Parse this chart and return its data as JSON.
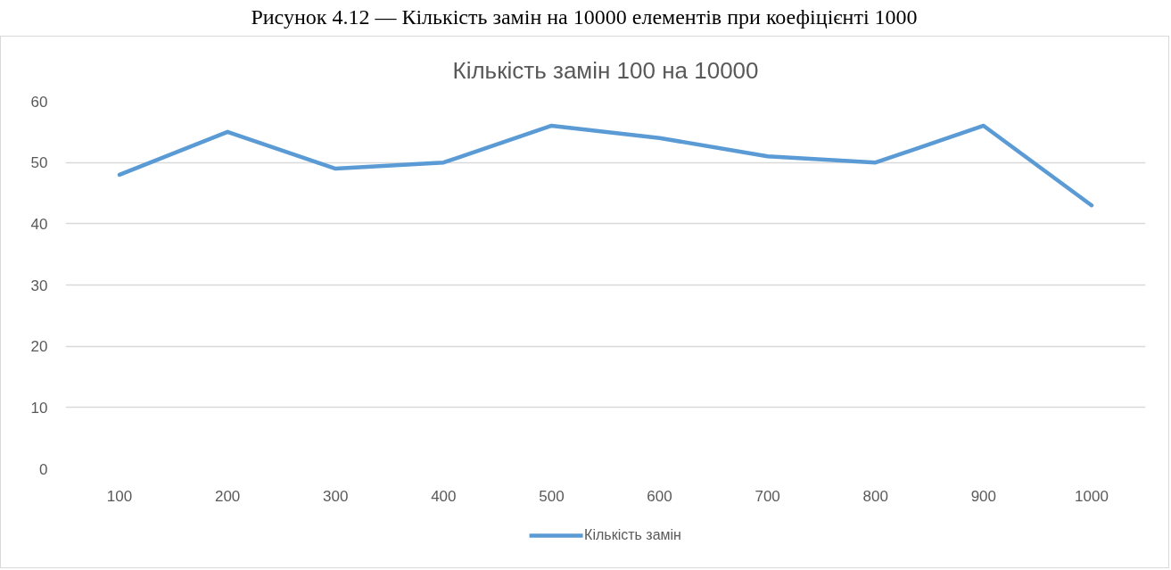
{
  "chart_data": {
    "type": "line",
    "title": "Кількість замін 100 на 10000",
    "annotations": [
      "Рисунок 4.12 — Кількість замін на 10000 елементів при коефіцієнті 1000"
    ],
    "categories": [
      "100",
      "200",
      "300",
      "400",
      "500",
      "600",
      "700",
      "800",
      "900",
      "1000"
    ],
    "series": [
      {
        "name": "Кількість замін",
        "color": "#5b9bd5",
        "values": [
          48,
          55,
          49,
          50,
          56,
          54,
          51,
          50,
          56,
          43
        ]
      }
    ],
    "ylim": [
      0,
      60
    ],
    "yticks": [
      0,
      10,
      20,
      30,
      40,
      50,
      60
    ],
    "grid": "y",
    "legend": "bottom",
    "line_style": "solid"
  }
}
